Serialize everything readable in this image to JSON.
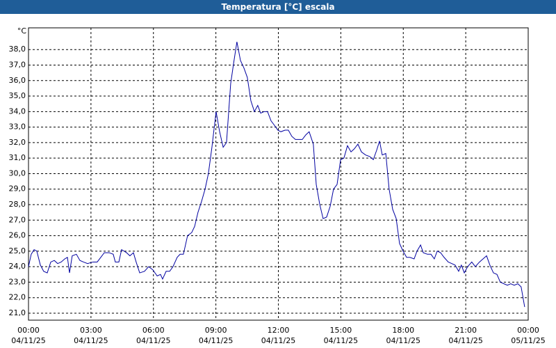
{
  "chart_data": {
    "type": "line",
    "title": "Temperatura [°C] escala",
    "y_unit": "°C",
    "color": "#0000a0",
    "grid": true,
    "x": [
      0,
      0.13,
      0.27,
      0.4,
      0.57,
      0.73,
      0.9,
      1.07,
      1.24,
      1.4,
      1.57,
      1.74,
      1.87,
      1.97,
      2.1,
      2.3,
      2.47,
      2.64,
      2.84,
      3.1,
      3.3,
      3.47,
      3.64,
      3.87,
      4.07,
      4.17,
      4.34,
      4.47,
      4.71,
      4.87,
      5.04,
      5.17,
      5.34,
      5.57,
      5.77,
      5.97,
      6.18,
      6.34,
      6.44,
      6.61,
      6.78,
      6.94,
      7.14,
      7.28,
      7.44,
      7.64,
      7.84,
      7.98,
      8.14,
      8.31,
      8.48,
      8.64,
      8.81,
      9.01,
      9.18,
      9.35,
      9.51,
      9.71,
      9.85,
      10.01,
      10.18,
      10.35,
      10.51,
      10.68,
      10.85,
      11.01,
      11.15,
      11.32,
      11.48,
      11.65,
      11.82,
      11.98,
      12.12,
      12.32,
      12.48,
      12.65,
      12.82,
      12.98,
      13.15,
      13.32,
      13.48,
      13.68,
      13.82,
      13.99,
      14.15,
      14.32,
      14.49,
      14.65,
      14.82,
      14.99,
      15.15,
      15.32,
      15.49,
      15.65,
      15.82,
      15.99,
      16.19,
      16.39,
      16.56,
      16.72,
      16.86,
      16.99,
      17.16,
      17.32,
      17.49,
      17.66,
      17.82,
      17.99,
      18.16,
      18.32,
      18.52,
      18.66,
      18.83,
      18.96,
      19.16,
      19.33,
      19.49,
      19.63,
      19.79,
      19.96,
      20.16,
      20.33,
      20.49,
      20.66,
      20.79,
      20.93,
      21.09,
      21.29,
      21.46,
      21.66,
      21.83,
      22.0,
      22.16,
      22.33,
      22.5,
      22.66,
      22.83,
      23.0,
      23.16,
      23.33,
      23.5,
      23.66,
      23.83
    ],
    "values": [
      24.0,
      24.8,
      25.1,
      25.0,
      24.1,
      23.7,
      23.6,
      24.3,
      24.4,
      24.2,
      24.3,
      24.5,
      24.6,
      23.6,
      24.7,
      24.8,
      24.4,
      24.3,
      24.2,
      24.3,
      24.3,
      24.6,
      24.9,
      24.9,
      24.8,
      24.3,
      24.3,
      25.1,
      24.9,
      24.7,
      24.9,
      24.3,
      23.6,
      23.7,
      24.0,
      23.8,
      23.4,
      23.5,
      23.2,
      23.7,
      23.7,
      24.0,
      24.6,
      24.8,
      24.8,
      26.0,
      26.2,
      26.6,
      27.5,
      28.2,
      29.0,
      30.0,
      31.7,
      34.0,
      32.7,
      31.7,
      32.0,
      35.8,
      37.1,
      38.5,
      37.3,
      36.8,
      36.2,
      34.7,
      34.0,
      34.4,
      33.9,
      34.0,
      34.0,
      33.4,
      33.1,
      32.8,
      32.7,
      32.8,
      32.8,
      32.4,
      32.2,
      32.2,
      32.2,
      32.5,
      32.7,
      31.9,
      29.3,
      28.0,
      27.1,
      27.2,
      27.9,
      29.0,
      29.3,
      30.9,
      31.0,
      31.8,
      31.4,
      31.6,
      31.9,
      31.4,
      31.2,
      31.1,
      30.9,
      31.5,
      32.1,
      31.2,
      31.3,
      29.0,
      27.7,
      27.1,
      25.5,
      25.0,
      24.6,
      24.6,
      24.5,
      25.0,
      25.4,
      24.9,
      24.8,
      24.8,
      24.5,
      25.0,
      24.9,
      24.6,
      24.3,
      24.2,
      24.1,
      23.7,
      24.1,
      23.6,
      24.0,
      24.3,
      24.0,
      24.3,
      24.5,
      24.7,
      24.1,
      23.6,
      23.5,
      23.0,
      22.9,
      22.8,
      22.9,
      22.8,
      22.9,
      22.7,
      21.4
    ],
    "xlim": [
      0,
      24
    ],
    "xticks": [
      {
        "value": 0,
        "label": "00:00"
      },
      {
        "value": 3,
        "label": "03:00"
      },
      {
        "value": 6,
        "label": "06:00"
      },
      {
        "value": 9,
        "label": "09:00"
      },
      {
        "value": 12,
        "label": "12:00"
      },
      {
        "value": 15,
        "label": "15:00"
      },
      {
        "value": 18,
        "label": "18:00"
      },
      {
        "value": 21,
        "label": "21:00"
      },
      {
        "value": 24,
        "label": "00:00"
      }
    ],
    "xtick_dates": [
      "04/11/25",
      "04/11/25",
      "04/11/25",
      "04/11/25",
      "04/11/25",
      "04/11/25",
      "04/11/25",
      "04/11/25",
      "05/11/25"
    ],
    "ylim": [
      20.55,
      39.4
    ],
    "yticks": [
      {
        "value": 21,
        "label": "21,0"
      },
      {
        "value": 22,
        "label": "22,0"
      },
      {
        "value": 23,
        "label": "23,0"
      },
      {
        "value": 24,
        "label": "24,0"
      },
      {
        "value": 25,
        "label": "25,0"
      },
      {
        "value": 26,
        "label": "26,0"
      },
      {
        "value": 27,
        "label": "27,0"
      },
      {
        "value": 28,
        "label": "28,0"
      },
      {
        "value": 29,
        "label": "29,0"
      },
      {
        "value": 30,
        "label": "30,0"
      },
      {
        "value": 31,
        "label": "31,0"
      },
      {
        "value": 32,
        "label": "32,0"
      },
      {
        "value": 33,
        "label": "33,0"
      },
      {
        "value": 34,
        "label": "34,0"
      },
      {
        "value": 35,
        "label": "35,0"
      },
      {
        "value": 36,
        "label": "36,0"
      },
      {
        "value": 37,
        "label": "37,0"
      },
      {
        "value": 38,
        "label": "38,0"
      }
    ]
  }
}
